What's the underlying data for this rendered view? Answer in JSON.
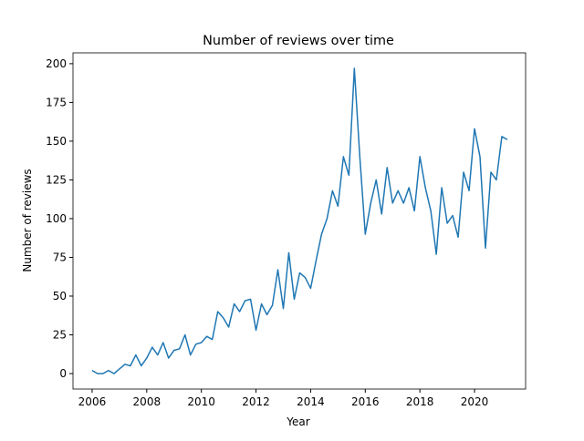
{
  "chart_data": {
    "type": "line",
    "title": "Number of reviews over time",
    "x_label": "Year",
    "y_label": "Number of reviews",
    "x": [
      2006,
      2006.2,
      2006.4,
      2006.6,
      2006.8,
      2007,
      2007.2,
      2007.4,
      2007.6,
      2007.8,
      2008,
      2008.2,
      2008.4,
      2008.6,
      2008.8,
      2009,
      2009.2,
      2009.4,
      2009.6,
      2009.8,
      2010,
      2010.2,
      2010.4,
      2010.6,
      2010.8,
      2011,
      2011.2,
      2011.4,
      2011.6,
      2011.8,
      2012,
      2012.2,
      2012.4,
      2012.6,
      2012.8,
      2013,
      2013.2,
      2013.4,
      2013.6,
      2013.8,
      2014,
      2014.2,
      2014.4,
      2014.6,
      2014.8,
      2015,
      2015.2,
      2015.4,
      2015.6,
      2015.8,
      2016,
      2016.2,
      2016.4,
      2016.6,
      2016.8,
      2017,
      2017.2,
      2017.4,
      2017.6,
      2017.8,
      2018,
      2018.2,
      2018.4,
      2018.6,
      2018.8,
      2019,
      2019.2,
      2019.4,
      2019.6,
      2019.8,
      2020,
      2020.2,
      2020.4,
      2020.6,
      2020.8,
      2021,
      2021.2
    ],
    "series": [
      {
        "color": "#1f77b4",
        "values": [
          2,
          0,
          0,
          2,
          0,
          3,
          6,
          5,
          12,
          5,
          10,
          17,
          12,
          20,
          10,
          15,
          16,
          25,
          12,
          19,
          20,
          24,
          22,
          40,
          36,
          30,
          45,
          40,
          47,
          48,
          28,
          45,
          38,
          44,
          67,
          42,
          78,
          48,
          65,
          62,
          55,
          73,
          90,
          100,
          118,
          108,
          140,
          128,
          197,
          140,
          90,
          110,
          125,
          103,
          133,
          110,
          118,
          110,
          120,
          105,
          140,
          120,
          105,
          77,
          120,
          97,
          102,
          88,
          130,
          118,
          158,
          140,
          81,
          130,
          125,
          153,
          151
        ]
      }
    ],
    "xlim": [
      2005.3,
      2021.87
    ],
    "xticks": [
      2006,
      2008,
      2010,
      2012,
      2014,
      2016,
      2018,
      2020
    ],
    "ylim": [
      -10,
      207
    ],
    "yticks": [
      0,
      25,
      50,
      75,
      100,
      125,
      150,
      175,
      200
    ]
  }
}
